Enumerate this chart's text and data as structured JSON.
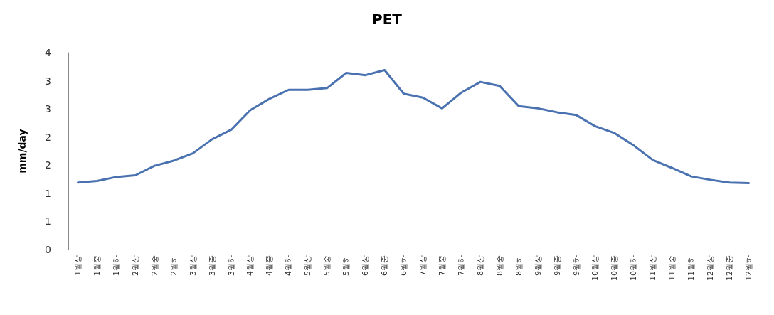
{
  "chart_data": {
    "type": "line",
    "title": "PET",
    "ylabel": "mm/day",
    "categories": [
      "1월상",
      "1월중",
      "1월하",
      "2월상",
      "2월중",
      "2월하",
      "3월상",
      "3월중",
      "3월하",
      "4월상",
      "4월중",
      "4월하",
      "5월상",
      "5월중",
      "5월하",
      "6월상",
      "6월중",
      "6월하",
      "7월상",
      "7월중",
      "7월하",
      "8월상",
      "8월중",
      "8월하",
      "9월상",
      "9월중",
      "9월하",
      "10월상",
      "10월중",
      "10월하",
      "11월상",
      "11월중",
      "11월하",
      "12월상",
      "12월중",
      "12월하"
    ],
    "series": [
      {
        "color": "#4a72b0",
        "values": [
          1.19,
          1.22,
          1.29,
          1.32,
          1.49,
          1.58,
          1.71,
          1.96,
          2.13,
          2.48,
          2.68,
          2.84,
          2.84,
          2.87,
          3.14,
          3.1,
          3.19,
          2.77,
          2.7,
          2.51,
          2.79,
          2.98,
          2.91,
          2.55,
          2.51,
          2.44,
          2.39,
          2.19,
          2.07,
          1.85,
          1.59,
          1.45,
          1.3,
          1.24,
          1.19,
          1.18
        ]
      }
    ],
    "ylim": [
      0,
      3.5
    ],
    "yticks": [
      0,
      {
        "value": 0.5,
        "label": "1"
      },
      1,
      {
        "value": 1.5,
        "label": "2"
      },
      2,
      {
        "value": 2.5,
        "label": "3"
      },
      3,
      {
        "value": 3.5,
        "label": "4"
      }
    ],
    "grid": false,
    "marker": "none",
    "line_style": "solid"
  }
}
